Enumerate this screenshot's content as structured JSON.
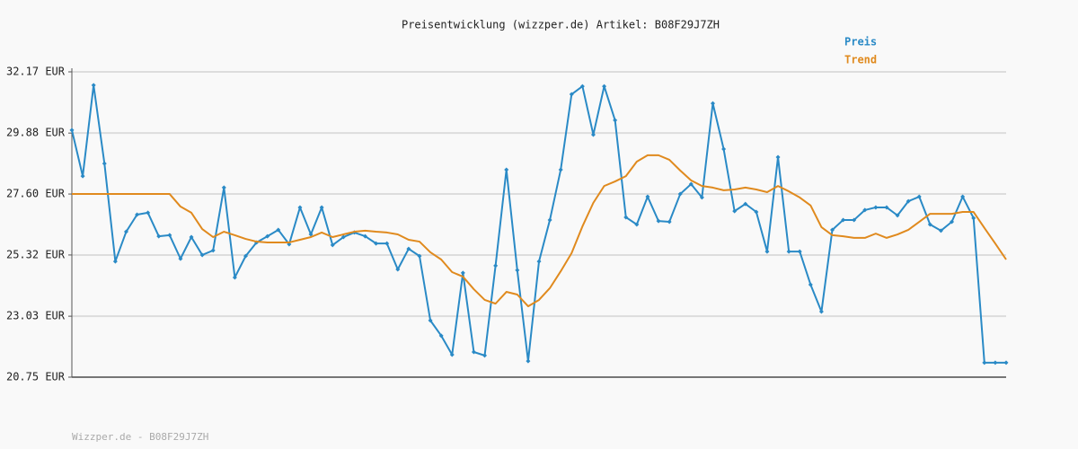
{
  "chart_data": {
    "type": "line",
    "title": "Preisentwicklung (wizzper.de) Artikel: B08F29J7ZH",
    "footer": "Wizzper.de - B08F29J7ZH",
    "legend": "top-right",
    "grid": true,
    "ylim": [
      20.75,
      32.17
    ],
    "yticks": [
      {
        "value": 20.75,
        "label": "20.75 EUR"
      },
      {
        "value": 23.03,
        "label": "23.03 EUR"
      },
      {
        "value": 25.32,
        "label": "25.32 EUR"
      },
      {
        "value": 27.6,
        "label": "27.60 EUR"
      },
      {
        "value": 29.88,
        "label": "29.88 EUR"
      },
      {
        "value": 32.17,
        "label": "32.17 EUR"
      }
    ],
    "series": [
      {
        "name": "Preis",
        "color": "#2a8ac6",
        "markers": true,
        "values": [
          29.99,
          28.27,
          31.67,
          28.74,
          25.08,
          26.19,
          26.83,
          26.9,
          26.02,
          26.06,
          25.18,
          25.99,
          25.32,
          25.49,
          27.84,
          24.48,
          25.28,
          25.79,
          26.02,
          26.26,
          25.72,
          27.1,
          26.09,
          27.1,
          25.69,
          25.99,
          26.16,
          26.02,
          25.75,
          25.75,
          24.78,
          25.55,
          25.28,
          22.87,
          22.3,
          21.59,
          24.65,
          21.69,
          21.56,
          24.92,
          28.51,
          24.75,
          21.35,
          25.08,
          26.63,
          28.51,
          31.33,
          31.63,
          29.82,
          31.63,
          30.36,
          26.73,
          26.46,
          27.5,
          26.59,
          26.56,
          27.6,
          27.97,
          27.47,
          30.99,
          29.28,
          26.96,
          27.23,
          26.93,
          25.45,
          28.98,
          25.45,
          25.45,
          24.21,
          23.2,
          26.26,
          26.63,
          26.63,
          27.0,
          27.1,
          27.1,
          26.8,
          27.33,
          27.5,
          26.46,
          26.23,
          26.56,
          27.5,
          26.7,
          21.29,
          21.29,
          21.29
        ]
      },
      {
        "name": "Trend",
        "color": "#e08a1e",
        "markers": false,
        "values": [
          27.6,
          27.6,
          27.6,
          27.6,
          27.6,
          27.6,
          27.6,
          27.6,
          27.6,
          27.6,
          27.13,
          26.9,
          26.29,
          25.99,
          26.19,
          26.06,
          25.92,
          25.82,
          25.79,
          25.79,
          25.79,
          25.89,
          25.99,
          26.16,
          25.99,
          26.09,
          26.19,
          26.23,
          26.19,
          26.16,
          26.09,
          25.89,
          25.82,
          25.42,
          25.15,
          24.68,
          24.51,
          24.04,
          23.64,
          23.5,
          23.94,
          23.84,
          23.4,
          23.64,
          24.08,
          24.71,
          25.39,
          26.39,
          27.27,
          27.9,
          28.07,
          28.27,
          28.81,
          29.05,
          29.05,
          28.88,
          28.48,
          28.11,
          27.9,
          27.84,
          27.74,
          27.77,
          27.84,
          27.77,
          27.67,
          27.9,
          27.7,
          27.47,
          27.17,
          26.36,
          26.06,
          26.02,
          25.96,
          25.96,
          26.12,
          25.96,
          26.09,
          26.26,
          26.56,
          26.86,
          26.86,
          26.86,
          26.93,
          26.93,
          26.33,
          25.75,
          25.15
        ]
      }
    ]
  }
}
